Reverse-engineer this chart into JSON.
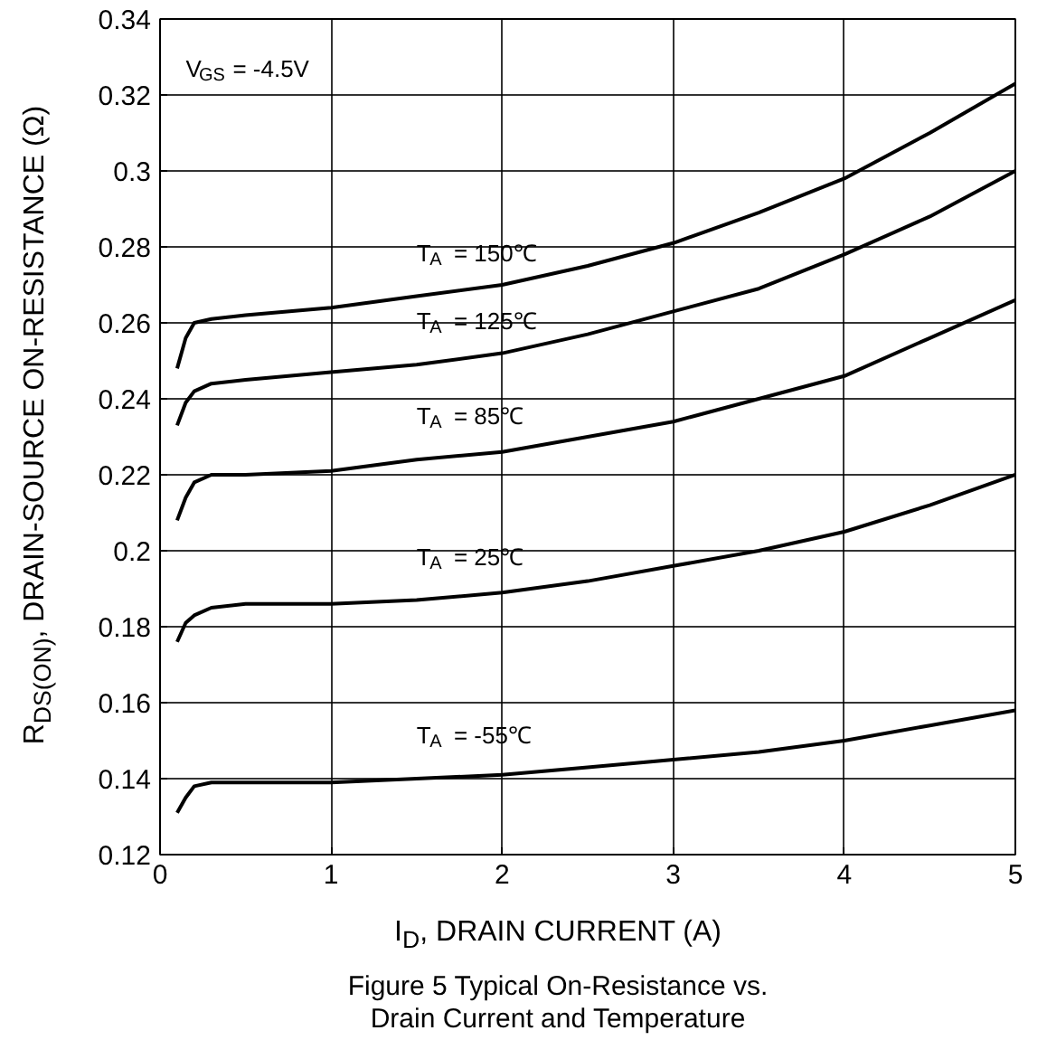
{
  "chart_data": {
    "type": "line",
    "title": "Figure 5 Typical On-Resistance vs.\nDrain Current and Temperature",
    "xlabel": "I$_{D}$, DRAIN CURRENT (A)",
    "ylabel": "R$_{DS(ON)}$, DRAIN-SOURCE ON-RESISTANCE (Ω)",
    "annotations": [
      "V$_{GS}$ = -4.5V"
    ],
    "x": [
      0.1,
      0.15,
      0.2,
      0.3,
      0.5,
      1,
      1.5,
      2,
      2.5,
      3,
      3.5,
      4,
      4.5,
      5
    ],
    "series": [
      {
        "name": "T$_{A}$ = 150℃",
        "color": "#000000",
        "values": [
          0.248,
          0.256,
          0.26,
          0.261,
          0.262,
          0.264,
          0.267,
          0.27,
          0.275,
          0.281,
          0.289,
          0.298,
          0.31,
          0.323
        ]
      },
      {
        "name": "T$_{A}$ = 125℃",
        "color": "#000000",
        "values": [
          0.233,
          0.239,
          0.242,
          0.244,
          0.245,
          0.247,
          0.249,
          0.252,
          0.257,
          0.263,
          0.269,
          0.278,
          0.288,
          0.3
        ]
      },
      {
        "name": "T$_{A}$ = 85℃",
        "color": "#000000",
        "values": [
          0.208,
          0.214,
          0.218,
          0.22,
          0.22,
          0.221,
          0.224,
          0.226,
          0.23,
          0.234,
          0.24,
          0.246,
          0.256,
          0.266
        ]
      },
      {
        "name": "T$_{A}$ = 25℃",
        "color": "#000000",
        "values": [
          0.176,
          0.181,
          0.183,
          0.185,
          0.186,
          0.186,
          0.187,
          0.189,
          0.192,
          0.196,
          0.2,
          0.205,
          0.212,
          0.22
        ]
      },
      {
        "name": "T$_{A}$ = -55℃",
        "color": "#000000",
        "values": [
          0.131,
          0.135,
          0.138,
          0.139,
          0.139,
          0.139,
          0.14,
          0.141,
          0.143,
          0.145,
          0.147,
          0.15,
          0.154,
          0.158
        ]
      }
    ],
    "xlim": [
      0,
      5
    ],
    "ylim": [
      0.12,
      0.34
    ],
    "xticks": [
      0,
      1,
      2,
      3,
      4,
      5
    ],
    "yticks": [
      0.12,
      0.14,
      0.16,
      0.18,
      0.2,
      0.22,
      0.24,
      0.26,
      0.28,
      0.3,
      0.32,
      0.34
    ],
    "grid": true,
    "legend": false,
    "marker": "none",
    "line_style": "solid"
  }
}
